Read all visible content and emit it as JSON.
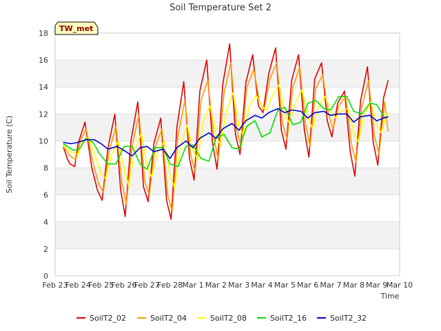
{
  "chart_data": {
    "type": "line",
    "title": "Soil Temperature Set 2",
    "xlabel": "Time",
    "ylabel": "Soil Temperature (C)",
    "ylim": [
      0,
      18
    ],
    "yticks": [
      0,
      2,
      4,
      6,
      8,
      10,
      12,
      14,
      16,
      18
    ],
    "xlim": [
      0,
      15
    ],
    "xtick_labels": [
      "Feb 23",
      "Feb 24",
      "Feb 25",
      "Feb 26",
      "Feb 27",
      "Feb 28",
      "Mar 1",
      "Mar 2",
      "Mar 3",
      "Mar 4",
      "Mar 5",
      "Mar 6",
      "Mar 7",
      "Mar 8",
      "Mar 9",
      "Mar 10"
    ],
    "x_start": "Feb 23",
    "grid": "horizontal bands",
    "legend_position": "bottom",
    "site_label": "TW_met",
    "colors": {
      "SoilT2_02": "#dd0000",
      "SoilT2_04": "#ff9900",
      "SoilT2_08": "#ffff00",
      "SoilT2_16": "#00dd00",
      "SoilT2_32": "#0000cc",
      "band": "#f2f2f2",
      "label_box": "#ffffc0"
    },
    "series": [
      {
        "name": "SoilT2_02",
        "x": [
          0.35,
          0.55,
          0.65,
          0.85,
          1.0,
          1.3,
          1.6,
          1.85,
          2.05,
          2.3,
          2.6,
          2.85,
          3.05,
          3.3,
          3.6,
          3.85,
          4.05,
          4.3,
          4.6,
          4.85,
          5.05,
          5.3,
          5.6,
          5.85,
          6.05,
          6.3,
          6.6,
          6.85,
          7.05,
          7.3,
          7.6,
          7.85,
          8.05,
          8.3,
          8.6,
          8.85,
          9.05,
          9.3,
          9.6,
          9.85,
          10.05,
          10.3,
          10.6,
          10.85,
          11.05,
          11.3,
          11.6,
          11.85,
          12.05,
          12.3,
          12.6,
          12.85,
          13.05,
          13.3,
          13.6,
          13.85,
          14.05,
          14.3,
          14.5
        ],
        "y": [
          9.6,
          8.6,
          8.3,
          8.1,
          9.8,
          11.4,
          8.0,
          6.3,
          5.6,
          9.5,
          12.0,
          6.4,
          4.4,
          10.0,
          12.9,
          6.6,
          5.5,
          9.8,
          11.7,
          5.6,
          4.2,
          11.0,
          14.4,
          8.7,
          7.1,
          13.7,
          16.0,
          9.9,
          7.9,
          14.2,
          17.2,
          10.5,
          9.0,
          14.3,
          16.4,
          12.6,
          12.1,
          15.0,
          16.9,
          10.8,
          9.4,
          14.5,
          16.4,
          10.8,
          8.8,
          14.6,
          15.8,
          11.5,
          10.3,
          12.8,
          13.7,
          9.2,
          7.4,
          13.0,
          15.5,
          9.9,
          8.2,
          13.2,
          14.5
        ]
      },
      {
        "name": "SoilT2_04",
        "x": [
          0.35,
          0.65,
          0.9,
          1.1,
          1.35,
          1.65,
          1.9,
          2.1,
          2.35,
          2.65,
          2.9,
          3.1,
          3.35,
          3.65,
          3.9,
          4.1,
          4.35,
          4.65,
          4.9,
          5.1,
          5.35,
          5.65,
          5.9,
          6.1,
          6.35,
          6.65,
          6.9,
          7.1,
          7.35,
          7.65,
          7.9,
          8.1,
          8.35,
          8.65,
          8.9,
          9.1,
          9.35,
          9.65,
          9.9,
          10.1,
          10.35,
          10.65,
          10.9,
          11.1,
          11.35,
          11.65,
          11.9,
          12.1,
          12.35,
          12.65,
          12.9,
          13.1,
          13.35,
          13.65,
          13.9,
          14.1,
          14.35,
          14.5
        ],
        "y": [
          9.6,
          8.9,
          8.6,
          10.0,
          10.9,
          8.4,
          6.8,
          6.2,
          9.2,
          11.1,
          7.0,
          5.3,
          9.6,
          12.0,
          7.0,
          6.0,
          9.5,
          10.9,
          6.0,
          4.8,
          10.4,
          13.0,
          9.0,
          7.7,
          13.0,
          14.5,
          10.4,
          8.6,
          13.5,
          15.8,
          10.9,
          9.5,
          14.0,
          15.3,
          12.9,
          12.3,
          14.6,
          15.8,
          11.3,
          10.1,
          14.0,
          15.5,
          11.3,
          9.6,
          13.9,
          14.9,
          12.0,
          10.9,
          12.6,
          13.3,
          9.8,
          8.4,
          12.5,
          14.5,
          10.4,
          9.0,
          12.9,
          10.7
        ]
      },
      {
        "name": "SoilT2_08",
        "x": [
          0.35,
          0.7,
          1.0,
          1.2,
          1.45,
          1.75,
          2.0,
          2.2,
          2.45,
          2.75,
          3.0,
          3.2,
          3.45,
          3.75,
          4.0,
          4.2,
          4.45,
          4.75,
          5.0,
          5.2,
          5.45,
          5.75,
          6.0,
          6.2,
          6.45,
          6.75,
          7.0,
          7.2,
          7.45,
          7.75,
          8.0,
          8.2,
          8.45,
          8.75,
          9.0,
          9.2,
          9.45,
          9.75,
          10.0,
          10.2,
          10.45,
          10.75,
          11.0,
          11.2,
          11.45,
          11.75,
          12.0,
          12.2,
          12.45,
          12.75,
          13.0,
          13.2,
          13.45,
          13.75,
          14.0,
          14.2,
          14.45,
          14.5
        ],
        "y": [
          9.7,
          9.2,
          9.0,
          10.0,
          10.3,
          8.9,
          7.6,
          7.2,
          9.0,
          10.0,
          8.0,
          6.7,
          9.1,
          10.6,
          8.2,
          7.3,
          9.1,
          10.0,
          7.5,
          6.5,
          9.6,
          11.2,
          9.3,
          8.6,
          11.4,
          12.6,
          10.5,
          9.6,
          12.2,
          13.6,
          11.1,
          10.4,
          12.6,
          13.4,
          12.6,
          12.3,
          13.3,
          14.2,
          12.0,
          11.3,
          12.8,
          13.8,
          11.8,
          10.9,
          12.5,
          13.3,
          12.2,
          11.7,
          12.2,
          12.4,
          10.7,
          9.9,
          11.9,
          12.9,
          11.2,
          10.6,
          12.1,
          12.0
        ]
      },
      {
        "name": "SoilT2_16",
        "x": [
          0.35,
          0.8,
          1.05,
          1.35,
          1.65,
          1.95,
          2.3,
          2.65,
          3.0,
          3.35,
          3.7,
          4.0,
          4.35,
          4.7,
          5.0,
          5.35,
          5.7,
          6.0,
          6.35,
          6.7,
          7.0,
          7.35,
          7.7,
          8.0,
          8.35,
          8.7,
          9.0,
          9.35,
          9.7,
          10.0,
          10.35,
          10.7,
          11.0,
          11.35,
          11.7,
          12.0,
          12.35,
          12.7,
          13.0,
          13.35,
          13.7,
          14.0,
          14.35,
          14.5
        ],
        "y": [
          9.8,
          9.3,
          9.4,
          10.2,
          9.9,
          9.0,
          8.3,
          8.3,
          9.6,
          9.6,
          8.3,
          7.9,
          9.5,
          9.5,
          8.3,
          8.1,
          9.6,
          9.7,
          8.7,
          8.5,
          10.2,
          10.5,
          9.5,
          9.4,
          11.1,
          11.5,
          10.3,
          10.6,
          12.3,
          12.5,
          11.2,
          11.4,
          12.8,
          13.0,
          12.4,
          12.3,
          13.3,
          13.3,
          12.2,
          12.0,
          12.8,
          12.7,
          11.7,
          11.8
        ]
      },
      {
        "name": "SoilT2_32",
        "x": [
          0.35,
          0.7,
          1.0,
          1.35,
          1.7,
          2.0,
          2.3,
          2.7,
          3.0,
          3.35,
          3.7,
          4.0,
          4.3,
          4.7,
          5.0,
          5.3,
          5.7,
          6.0,
          6.3,
          6.7,
          7.0,
          7.3,
          7.7,
          8.0,
          8.3,
          8.7,
          9.0,
          9.3,
          9.7,
          10.0,
          10.3,
          10.7,
          11.0,
          11.3,
          11.7,
          12.0,
          12.3,
          12.7,
          13.0,
          13.3,
          13.7,
          14.0,
          14.3,
          14.5
        ],
        "y": [
          9.9,
          9.8,
          9.9,
          10.1,
          10.1,
          9.8,
          9.4,
          9.6,
          9.3,
          8.9,
          9.5,
          9.6,
          9.2,
          9.4,
          8.7,
          9.5,
          10.0,
          9.5,
          10.2,
          10.6,
          10.2,
          10.9,
          11.3,
          10.8,
          11.5,
          11.9,
          11.7,
          12.1,
          12.4,
          12.1,
          12.3,
          12.2,
          11.7,
          12.1,
          12.2,
          11.9,
          12.0,
          12.0,
          11.4,
          11.8,
          11.9,
          11.5,
          11.7,
          11.8
        ]
      }
    ]
  }
}
